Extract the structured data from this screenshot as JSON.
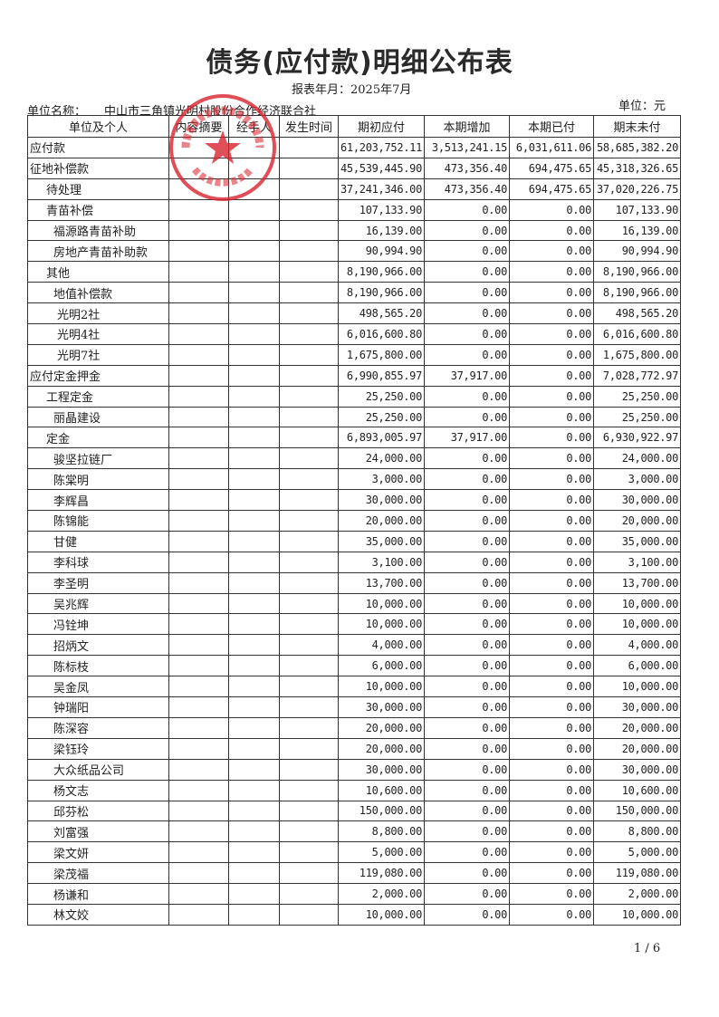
{
  "title": "债务(应付款)明细公布表",
  "report_period": "报表年月：2025年7月",
  "unit_name_label": "单位名称：",
  "unit_name": "中山市三角镇光明村股份合作经济联合社",
  "currency_unit": "单位：元",
  "columns": [
    "单位及个人",
    "内容摘要",
    "经手人",
    "发生时间",
    "期初应付",
    "本期增加",
    "本期已付",
    "期末未付"
  ],
  "rows": [
    {
      "name": "应付款",
      "level": 0,
      "opening": "61,203,752.11",
      "increase": "3,513,241.15",
      "paid": "6,031,611.06",
      "closing": "58,685,382.20"
    },
    {
      "name": "征地补偿款",
      "level": 0,
      "opening": "45,539,445.90",
      "increase": "473,356.40",
      "paid": "694,475.65",
      "closing": "45,318,326.65"
    },
    {
      "name": "待处理",
      "level": 1,
      "opening": "37,241,346.00",
      "increase": "473,356.40",
      "paid": "694,475.65",
      "closing": "37,020,226.75"
    },
    {
      "name": "青苗补偿",
      "level": 1,
      "opening": "107,133.90",
      "increase": "0.00",
      "paid": "0.00",
      "closing": "107,133.90"
    },
    {
      "name": "福源路青苗补助",
      "level": 2,
      "opening": "16,139.00",
      "increase": "0.00",
      "paid": "0.00",
      "closing": "16,139.00"
    },
    {
      "name": "房地产青苗补助款",
      "level": 2,
      "opening": "90,994.90",
      "increase": "0.00",
      "paid": "0.00",
      "closing": "90,994.90"
    },
    {
      "name": "其他",
      "level": 1,
      "opening": "8,190,966.00",
      "increase": "0.00",
      "paid": "0.00",
      "closing": "8,190,966.00"
    },
    {
      "name": "地值补偿款",
      "level": 2,
      "opening": "8,190,966.00",
      "increase": "0.00",
      "paid": "0.00",
      "closing": "8,190,966.00"
    },
    {
      "name": "光明2社",
      "level": 3,
      "opening": "498,565.20",
      "increase": "0.00",
      "paid": "0.00",
      "closing": "498,565.20"
    },
    {
      "name": "光明4社",
      "level": 3,
      "opening": "6,016,600.80",
      "increase": "0.00",
      "paid": "0.00",
      "closing": "6,016,600.80"
    },
    {
      "name": "光明7社",
      "level": 3,
      "opening": "1,675,800.00",
      "increase": "0.00",
      "paid": "0.00",
      "closing": "1,675,800.00"
    },
    {
      "name": "应付定金押金",
      "level": 0,
      "opening": "6,990,855.97",
      "increase": "37,917.00",
      "paid": "0.00",
      "closing": "7,028,772.97"
    },
    {
      "name": "工程定金",
      "level": 1,
      "opening": "25,250.00",
      "increase": "0.00",
      "paid": "0.00",
      "closing": "25,250.00"
    },
    {
      "name": "丽晶建设",
      "level": 2,
      "opening": "25,250.00",
      "increase": "0.00",
      "paid": "0.00",
      "closing": "25,250.00"
    },
    {
      "name": "定金",
      "level": 1,
      "opening": "6,893,005.97",
      "increase": "37,917.00",
      "paid": "0.00",
      "closing": "6,930,922.97"
    },
    {
      "name": "骏坚拉链厂",
      "level": 2,
      "opening": "24,000.00",
      "increase": "0.00",
      "paid": "0.00",
      "closing": "24,000.00"
    },
    {
      "name": "陈棠明",
      "level": 2,
      "opening": "3,000.00",
      "increase": "0.00",
      "paid": "0.00",
      "closing": "3,000.00"
    },
    {
      "name": "李辉昌",
      "level": 2,
      "opening": "30,000.00",
      "increase": "0.00",
      "paid": "0.00",
      "closing": "30,000.00"
    },
    {
      "name": "陈锦能",
      "level": 2,
      "opening": "20,000.00",
      "increase": "0.00",
      "paid": "0.00",
      "closing": "20,000.00"
    },
    {
      "name": "甘健",
      "level": 2,
      "opening": "35,000.00",
      "increase": "0.00",
      "paid": "0.00",
      "closing": "35,000.00"
    },
    {
      "name": "李科球",
      "level": 2,
      "opening": "3,100.00",
      "increase": "0.00",
      "paid": "0.00",
      "closing": "3,100.00"
    },
    {
      "name": "李圣明",
      "level": 2,
      "opening": "13,700.00",
      "increase": "0.00",
      "paid": "0.00",
      "closing": "13,700.00"
    },
    {
      "name": "吴兆辉",
      "level": 2,
      "opening": "10,000.00",
      "increase": "0.00",
      "paid": "0.00",
      "closing": "10,000.00"
    },
    {
      "name": "冯铨坤",
      "level": 2,
      "opening": "10,000.00",
      "increase": "0.00",
      "paid": "0.00",
      "closing": "10,000.00"
    },
    {
      "name": "招炳文",
      "level": 2,
      "opening": "4,000.00",
      "increase": "0.00",
      "paid": "0.00",
      "closing": "4,000.00"
    },
    {
      "name": "陈标枝",
      "level": 2,
      "opening": "6,000.00",
      "increase": "0.00",
      "paid": "0.00",
      "closing": "6,000.00"
    },
    {
      "name": "吴金凤",
      "level": 2,
      "opening": "10,000.00",
      "increase": "0.00",
      "paid": "0.00",
      "closing": "10,000.00"
    },
    {
      "name": "钟瑞阳",
      "level": 2,
      "opening": "30,000.00",
      "increase": "0.00",
      "paid": "0.00",
      "closing": "30,000.00"
    },
    {
      "name": "陈深容",
      "level": 2,
      "opening": "20,000.00",
      "increase": "0.00",
      "paid": "0.00",
      "closing": "20,000.00"
    },
    {
      "name": "梁钰玲",
      "level": 2,
      "opening": "20,000.00",
      "increase": "0.00",
      "paid": "0.00",
      "closing": "20,000.00"
    },
    {
      "name": "大众纸品公司",
      "level": 2,
      "opening": "30,000.00",
      "increase": "0.00",
      "paid": "0.00",
      "closing": "30,000.00"
    },
    {
      "name": "杨文志",
      "level": 2,
      "opening": "10,600.00",
      "increase": "0.00",
      "paid": "0.00",
      "closing": "10,600.00"
    },
    {
      "name": "邱芬松",
      "level": 2,
      "opening": "150,000.00",
      "increase": "0.00",
      "paid": "0.00",
      "closing": "150,000.00"
    },
    {
      "name": "刘富强",
      "level": 2,
      "opening": "8,800.00",
      "increase": "0.00",
      "paid": "0.00",
      "closing": "8,800.00"
    },
    {
      "name": "梁文妍",
      "level": 2,
      "opening": "5,000.00",
      "increase": "0.00",
      "paid": "0.00",
      "closing": "5,000.00"
    },
    {
      "name": "梁茂福",
      "level": 2,
      "opening": "119,080.00",
      "increase": "0.00",
      "paid": "0.00",
      "closing": "119,080.00"
    },
    {
      "name": "杨谦和",
      "level": 2,
      "opening": "2,000.00",
      "increase": "0.00",
      "paid": "0.00",
      "closing": "2,000.00"
    },
    {
      "name": "林文姣",
      "level": 2,
      "opening": "10,000.00",
      "increase": "0.00",
      "paid": "0.00",
      "closing": "10,000.00"
    }
  ],
  "page_indicator": "1 / 6",
  "seal_color": "#d9232e"
}
